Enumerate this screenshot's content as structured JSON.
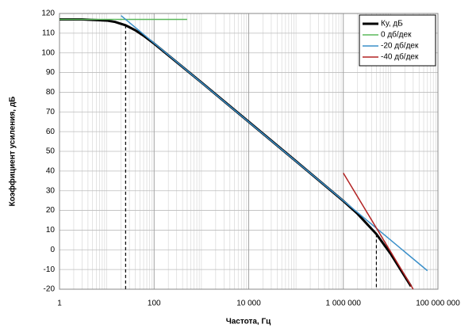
{
  "chart_data": {
    "type": "line",
    "x_label": "Частота, Гц",
    "y_label": "Коэффициент усиления, дБ",
    "x_log": true,
    "xlim": [
      1,
      100000000
    ],
    "xticks": [
      1,
      100,
      {
        "value": 10000,
        "label": "10 000"
      },
      {
        "value": 1000000,
        "label": "1 000 000"
      },
      {
        "value": 100000000,
        "label": "100 000 000"
      }
    ],
    "ylim": [
      -20,
      120
    ],
    "yticks": [
      -20,
      -10,
      0,
      10,
      20,
      30,
      40,
      50,
      60,
      70,
      80,
      90,
      100,
      110,
      120
    ],
    "grid": true,
    "minor_grid": true,
    "legend": "top-right",
    "cutoff_lines": [
      25,
      5000000
    ],
    "series": [
      {
        "name": "Ку, дБ",
        "color": "#000000",
        "width": 3,
        "x": [
          1,
          3,
          10,
          15,
          25,
          40,
          60,
          100,
          1000,
          10000,
          100000,
          1000000,
          2000000,
          5000000,
          10000000,
          27000000
        ],
        "values": [
          117,
          117,
          116.4,
          115.7,
          114,
          111.5,
          108.7,
          104.7,
          85,
          65,
          45,
          24.8,
          18.3,
          8,
          -2,
          -18.5
        ]
      },
      {
        "name": "0 дб/дек",
        "color": "#5cb85c",
        "width": 1.5,
        "x": [
          1,
          500
        ],
        "values": [
          117,
          117
        ]
      },
      {
        "name": "-20 дб/дек",
        "color": "#3a8fc9",
        "width": 1.5,
        "x": [
          20,
          60000000
        ],
        "values": [
          118.9,
          -10.6
        ]
      },
      {
        "name": "-40 дб/дек",
        "color": "#b22222",
        "width": 1.5,
        "x": [
          1000000,
          30000000
        ],
        "values": [
          39,
          -20
        ]
      }
    ]
  }
}
